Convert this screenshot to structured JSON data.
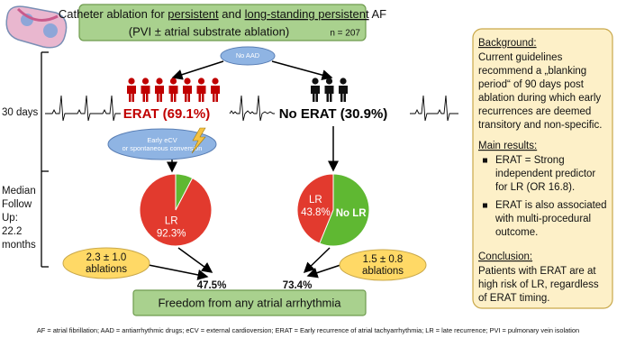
{
  "header": {
    "title_parts": [
      "Catheter ablation for ",
      "persistent",
      " and ",
      "long-standing persistent",
      " AF"
    ],
    "subtitle": "(PVI ± atrial substrate ablation)",
    "n": "n = 207"
  },
  "timeline": {
    "early": "30 days",
    "followup": [
      "Median",
      "Follow",
      "Up:",
      "22.2",
      "months"
    ]
  },
  "branch": {
    "top": "No AAD",
    "conversion": [
      "Early eCV",
      "or spontaneous conversion"
    ]
  },
  "groups": [
    {
      "label": "ERAT (69.1%)",
      "pie": {
        "label": "LR",
        "value": 92.3,
        "value_label": "92.3%"
      },
      "ablations": [
        "2.3 ± 1.0",
        "ablations"
      ],
      "freedom": "47.5%"
    },
    {
      "label": "No ERAT (30.9%)",
      "pie": {
        "label": "LR",
        "value": 43.8,
        "value_label": "43.8%",
        "rest_label": "No LR"
      },
      "ablations": [
        "1.5 ± 0.8",
        "ablations"
      ],
      "freedom": "73.4%"
    }
  ],
  "outcome": "Freedom from any atrial arrhythmia",
  "sidebar": {
    "background_heading": "Background:",
    "background": [
      "Current guidelines",
      "recommend a „blanking",
      "period“ of 90 days post",
      "ablation during which early",
      "recurrences are deemed",
      "transitory and non-specific."
    ],
    "results_heading": "Main results:",
    "results": [
      [
        "ERAT = Strong",
        "independent predictor",
        "for LR (OR 16.8)."
      ],
      [
        "ERAT is also associated",
        "with multi-procedural",
        "outcome."
      ]
    ],
    "conclusion_heading": "Conclusion:",
    "conclusion": [
      "Patients with ERAT are at",
      "high risk of LR, regardless",
      "of ERAT timing."
    ]
  },
  "footnote": "AF = atrial fibrillation; AAD = antiarrhythmic drugs; eCV = external cardioversion; ERAT = Early recurrence of atrial tachyarrhythmia; LR = late recurrence; PVI = pulmonary vein isolation"
}
